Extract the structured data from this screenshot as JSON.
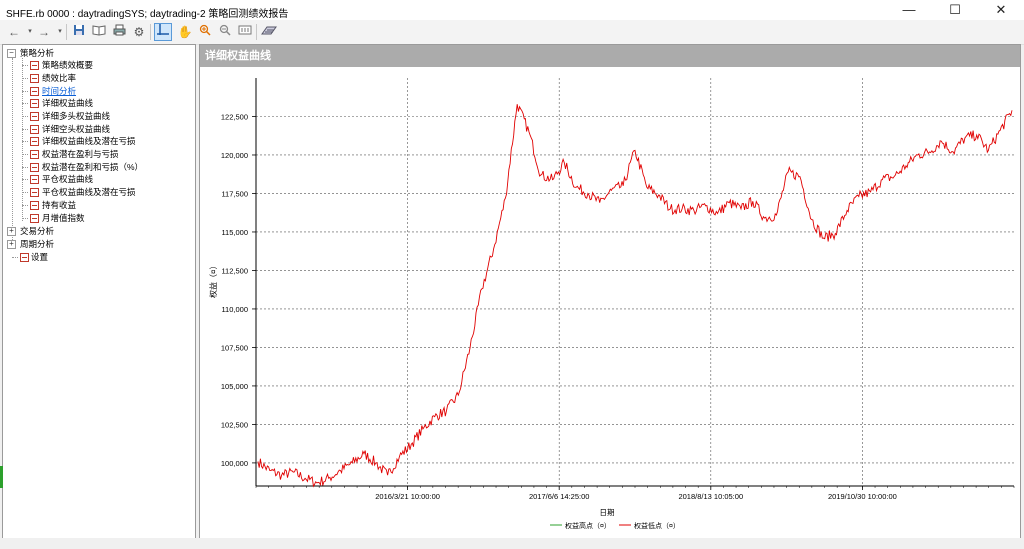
{
  "window": {
    "title": "SHFE.rb 0000 : daytradingSYS; daytrading-2 策略回测绩效报告",
    "minimize": "—",
    "maximize": "☐",
    "close": "✕"
  },
  "toolbar": {
    "icons": [
      "back-arrow-icon",
      "forward-arrow-icon",
      "save-icon",
      "open-book-icon",
      "print-icon",
      "settings-gear-icon",
      "crosshair-cursor-icon",
      "hand-pan-icon",
      "zoom-in-icon",
      "zoom-out-icon",
      "fit-view-icon",
      "chart-data-icon"
    ]
  },
  "tree": {
    "root": "策略分析",
    "items": [
      {
        "label": "策略绩效概要",
        "link": false
      },
      {
        "label": "绩效比率",
        "link": false
      },
      {
        "label": "时间分析",
        "link": true
      },
      {
        "label": "详细权益曲线",
        "link": false
      },
      {
        "label": "详细多头权益曲线",
        "link": false
      },
      {
        "label": "详细空头权益曲线",
        "link": false
      },
      {
        "label": "详细权益曲线及潜在亏损",
        "link": false
      },
      {
        "label": "权益潜在盈利与亏损",
        "link": false
      },
      {
        "label": "权益潜在盈利和亏损（%）",
        "link": false
      },
      {
        "label": "平仓权益曲线",
        "link": false
      },
      {
        "label": "平仓权益曲线及潜在亏损",
        "link": false
      },
      {
        "label": "持有收益",
        "link": false
      },
      {
        "label": "月增值指数",
        "link": false
      }
    ],
    "groups": [
      "交易分析",
      "周期分析"
    ],
    "settings": "设置"
  },
  "panel": {
    "title": "详细权益曲线"
  },
  "chart_data": {
    "type": "line",
    "title": "",
    "xlabel": "日期",
    "ylabel": "权益（¤）",
    "ylim": [
      98500,
      125000
    ],
    "ytick_values": [
      100000,
      102500,
      105000,
      107500,
      110000,
      112500,
      115000,
      117500,
      120000,
      122500
    ],
    "ytick_labels": [
      "100,000",
      "102,500",
      "105,000",
      "107,500",
      "110,000",
      "112,500",
      "115,000",
      "117,500",
      "120,000",
      "122,500"
    ],
    "xtick_labels": [
      "2016/3/21 10:00:00",
      "2017/6/6 14:25:00",
      "2018/8/13 10:05:00",
      "2019/10/30 10:00:00"
    ],
    "grid": true,
    "legend": [
      "权益高点（¤）",
      "权益低点（¤）"
    ],
    "legend_colors": [
      "#2ca02c",
      "#e00000"
    ],
    "series_color": "#e00000",
    "x": [
      "2015/6",
      "2015/7",
      "2015/9",
      "2015/10",
      "2015/11",
      "2016/1",
      "2016/2",
      "2016/3",
      "2016/4",
      "2016/5",
      "2016/6",
      "2016/7",
      "2016/8",
      "2016/9",
      "2016/10",
      "2016/11",
      "2016/12",
      "2017/1",
      "2017/2",
      "2017/3",
      "2017/4",
      "2017/5",
      "2017/6",
      "2017/7",
      "2017/8",
      "2017/9",
      "2017/10",
      "2017/11",
      "2017/12",
      "2018/1",
      "2018/2",
      "2018/3",
      "2018/4",
      "2018/5",
      "2018/6",
      "2018/7",
      "2018/8",
      "2018/9",
      "2018/10",
      "2018/11",
      "2018/12",
      "2019/1",
      "2019/2",
      "2019/3",
      "2019/4",
      "2019/5",
      "2019/6",
      "2019/7",
      "2019/8",
      "2019/9",
      "2019/10",
      "2019/11",
      "2019/12",
      "2020/1",
      "2020/2",
      "2020/3",
      "2020/4",
      "2020/5",
      "2020/6",
      "2020/7",
      "2020/8",
      "2020/9",
      "2020/10",
      "2020/11",
      "2020/12"
    ],
    "values": [
      100100,
      99500,
      99200,
      99400,
      99000,
      98700,
      99000,
      99500,
      100000,
      100600,
      100000,
      99200,
      100400,
      101200,
      102200,
      103000,
      103400,
      104400,
      107500,
      111300,
      113900,
      117200,
      123300,
      121500,
      118700,
      118400,
      119500,
      117900,
      117500,
      116900,
      117700,
      118000,
      120300,
      117900,
      117400,
      116500,
      116500,
      116400,
      116700,
      116200,
      116900,
      116500,
      117000,
      115900,
      116100,
      118900,
      118600,
      115800,
      114600,
      114900,
      116400,
      117300,
      117600,
      118400,
      118600,
      119300,
      120000,
      120200,
      120900,
      120200,
      121100,
      121300,
      120300,
      121600,
      122900
    ]
  },
  "colors": {
    "panel_header": "#ababab",
    "equity_low": "#e00000",
    "equity_high": "#2ca02c",
    "link": "#0b5fd6"
  }
}
